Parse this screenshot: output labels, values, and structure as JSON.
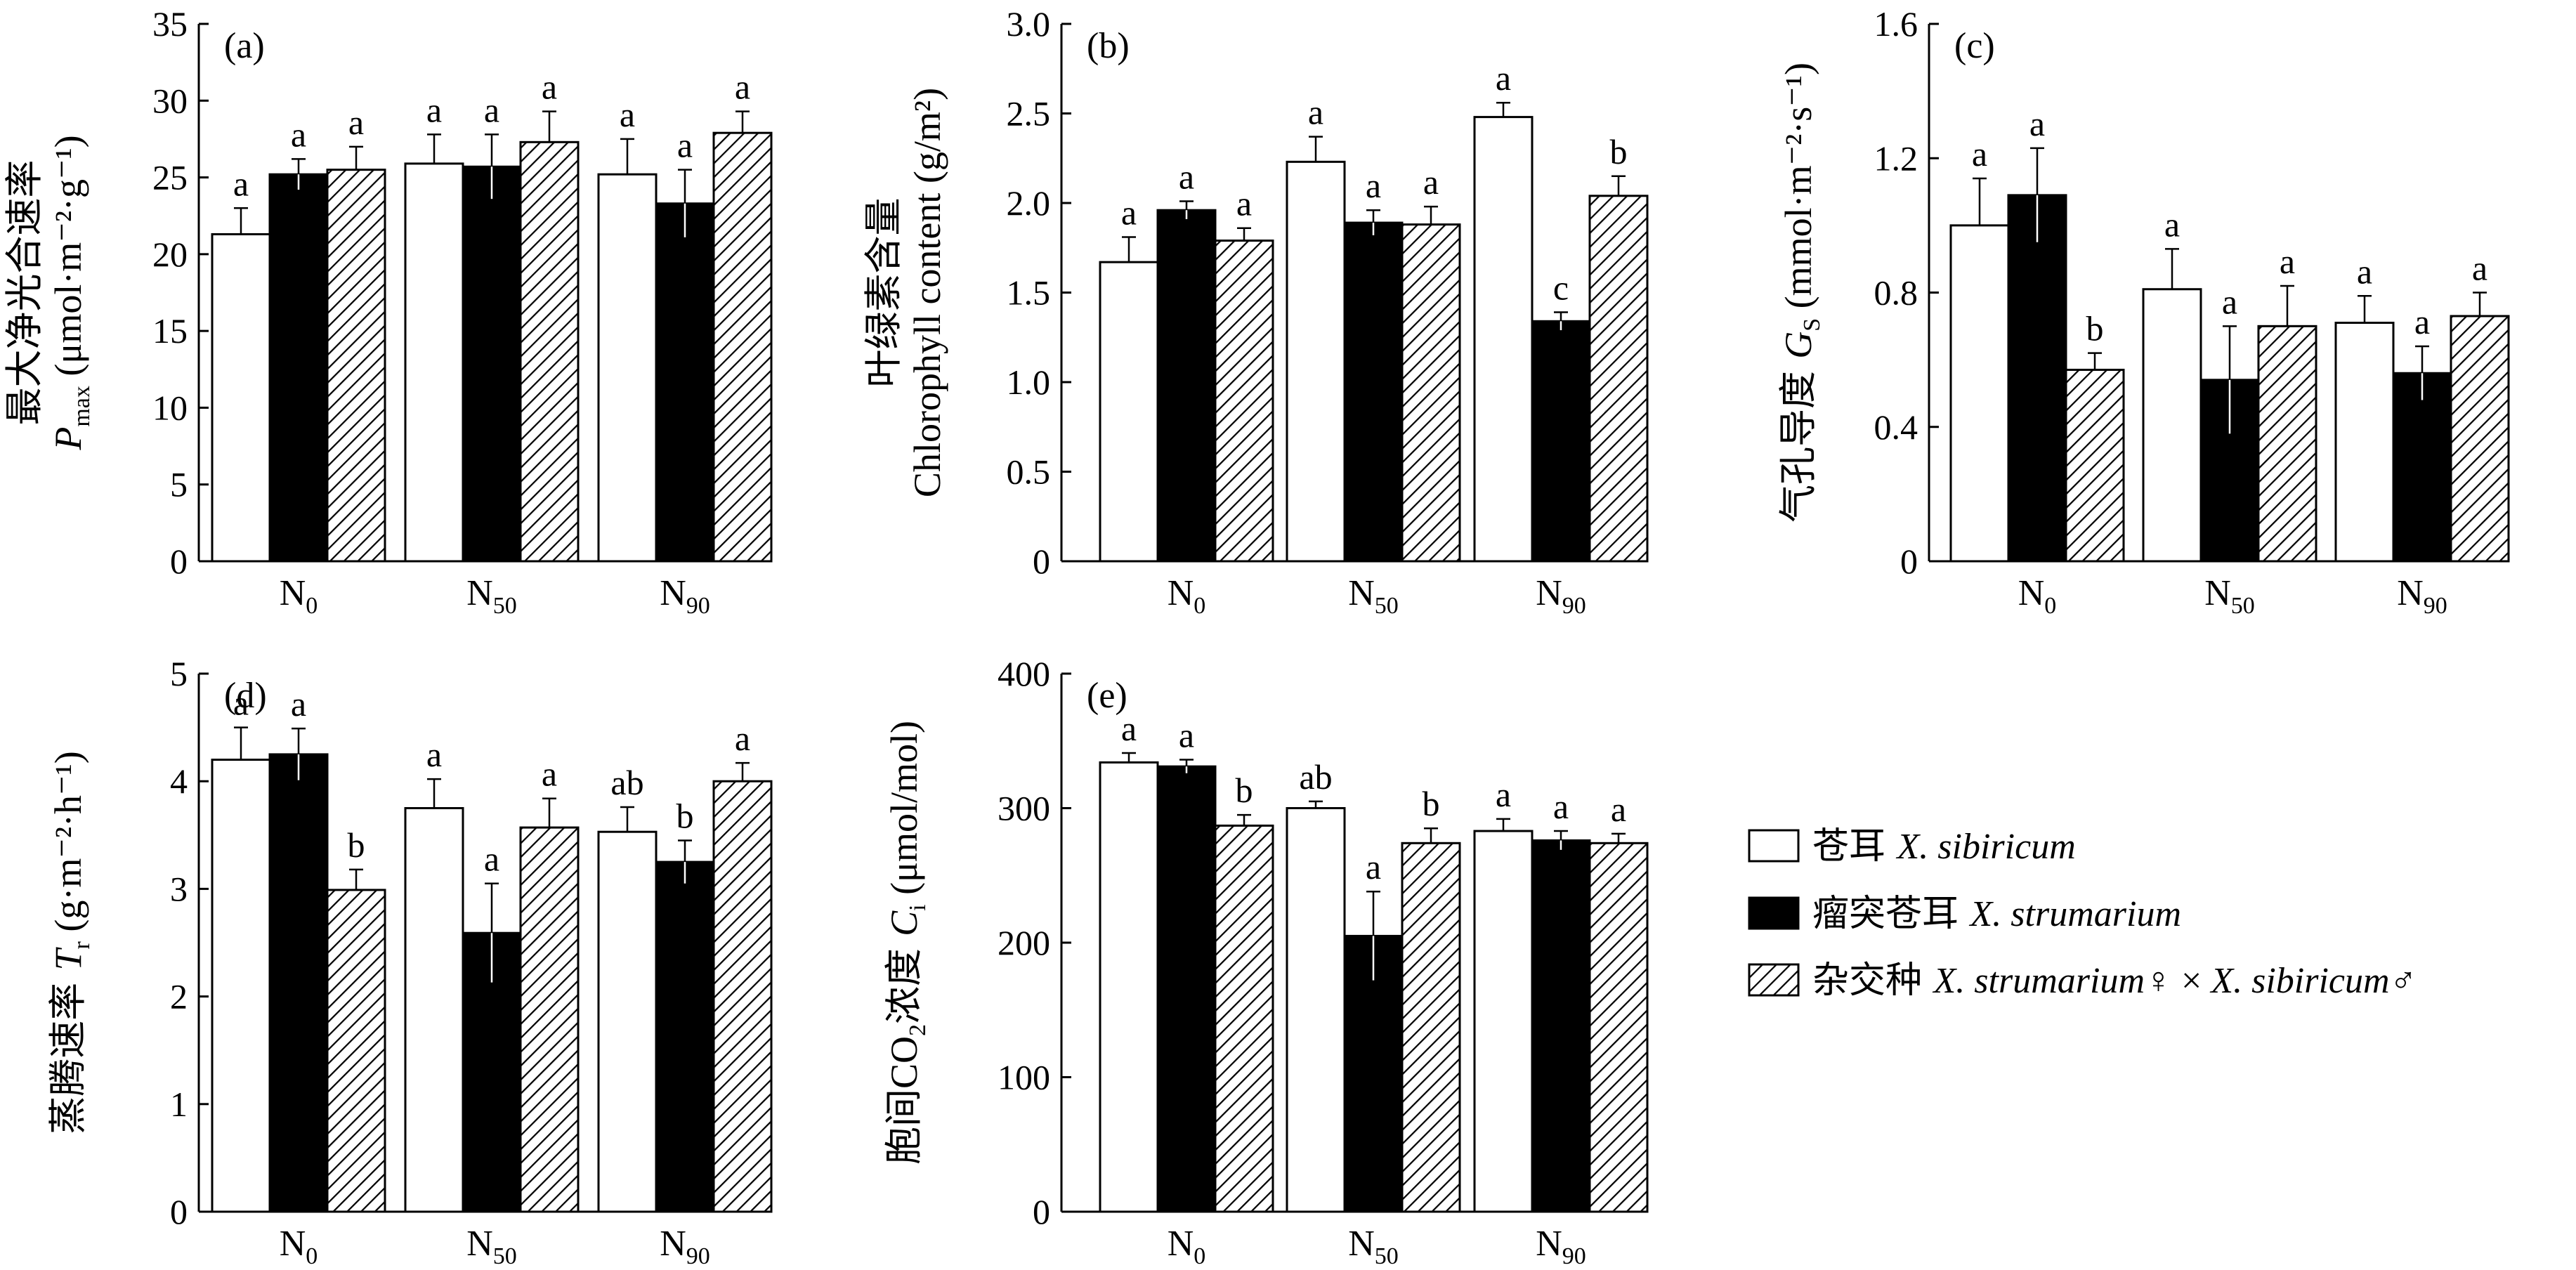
{
  "colors": {
    "white_bar": "#ffffff",
    "black_bar": "#000000",
    "hatch": "#000000",
    "axis": "#000000"
  },
  "legend": {
    "items": [
      {
        "swatch": "white",
        "cn": "苍耳",
        "sci": "X. sibiricum",
        "suffix": ""
      },
      {
        "swatch": "black",
        "cn": "瘤突苍耳",
        "sci": "X. strumarium",
        "suffix": ""
      },
      {
        "swatch": "hatch",
        "cn": "杂交种",
        "sci": "X. strumarium",
        "suffix": "♀ × ",
        "sci2": "X. sibiricum",
        "suffix2": "♂"
      }
    ]
  },
  "chart_data": [
    {
      "type": "bar",
      "panel": "(a)",
      "ylabel_cn": "最大净光合速率",
      "ylabel_sym": "P",
      "ylabel_sub": "max",
      "ylabel_unit": "(μmol·m⁻²·g⁻¹)",
      "ylim": [
        0,
        35
      ],
      "yticks": [
        0,
        5,
        10,
        15,
        20,
        25,
        30,
        35
      ],
      "categories": [
        {
          "base": "N",
          "sub": "0"
        },
        {
          "base": "N",
          "sub": "50"
        },
        {
          "base": "N",
          "sub": "90"
        }
      ],
      "series": [
        {
          "style": "white",
          "values": [
            21.3,
            25.9,
            25.2
          ],
          "errors": [
            1.7,
            1.9,
            2.3
          ],
          "letters": [
            "a",
            "a",
            "a"
          ]
        },
        {
          "style": "black",
          "values": [
            25.2,
            25.7,
            23.3
          ],
          "errors": [
            1.0,
            2.1,
            2.2
          ],
          "letters": [
            "a",
            "a",
            "a"
          ]
        },
        {
          "style": "hatch",
          "values": [
            25.5,
            27.3,
            27.9
          ],
          "errors": [
            1.5,
            2.0,
            1.4
          ],
          "letters": [
            "a",
            "a",
            "a"
          ]
        }
      ]
    },
    {
      "type": "bar",
      "panel": "(b)",
      "ylabel_cn": "叶绿素含量",
      "ylabel_en": "Chlorophyll content (g/m²)",
      "ylim": [
        0,
        3.0
      ],
      "yticks": [
        "0",
        "0.5",
        "1.0",
        "1.5",
        "2.0",
        "2.5",
        "3.0"
      ],
      "categories": [
        {
          "base": "N",
          "sub": "0"
        },
        {
          "base": "N",
          "sub": "50"
        },
        {
          "base": "N",
          "sub": "90"
        }
      ],
      "series": [
        {
          "style": "white",
          "values": [
            1.67,
            2.23,
            2.48
          ],
          "errors": [
            0.14,
            0.14,
            0.08
          ],
          "letters": [
            "a",
            "a",
            "a"
          ]
        },
        {
          "style": "black",
          "values": [
            1.96,
            1.89,
            1.34
          ],
          "errors": [
            0.05,
            0.07,
            0.05
          ],
          "letters": [
            "a",
            "a",
            "c"
          ]
        },
        {
          "style": "hatch",
          "values": [
            1.79,
            1.88,
            2.04
          ],
          "errors": [
            0.07,
            0.1,
            0.11
          ],
          "letters": [
            "a",
            "a",
            "b"
          ]
        }
      ]
    },
    {
      "type": "bar",
      "panel": "(c)",
      "ylabel_cn": "气孔导度",
      "ylabel_sym": "G",
      "ylabel_sub": "S",
      "ylabel_unit": "(mmol·m⁻²·s⁻¹)",
      "ylim": [
        0,
        1.6
      ],
      "yticks": [
        "0",
        "0.4",
        "0.8",
        "1.2",
        "1.6"
      ],
      "categories": [
        {
          "base": "N",
          "sub": "0"
        },
        {
          "base": "N",
          "sub": "50"
        },
        {
          "base": "N",
          "sub": "90"
        }
      ],
      "series": [
        {
          "style": "white",
          "values": [
            1.0,
            0.81,
            0.71
          ],
          "errors": [
            0.14,
            0.12,
            0.08
          ],
          "letters": [
            "a",
            "a",
            "a"
          ]
        },
        {
          "style": "black",
          "values": [
            1.09,
            0.54,
            0.56
          ],
          "errors": [
            0.14,
            0.16,
            0.08
          ],
          "letters": [
            "a",
            "a",
            "a"
          ]
        },
        {
          "style": "hatch",
          "values": [
            0.57,
            0.7,
            0.73
          ],
          "errors": [
            0.05,
            0.12,
            0.07
          ],
          "letters": [
            "b",
            "a",
            "a"
          ]
        }
      ]
    },
    {
      "type": "bar",
      "panel": "(d)",
      "ylabel_cn": "蒸腾速率",
      "ylabel_sym": "T",
      "ylabel_sub": "r",
      "ylabel_unit": "(g·m⁻²·h⁻¹)",
      "ylim": [
        0,
        5
      ],
      "yticks": [
        0,
        1,
        2,
        3,
        4,
        5
      ],
      "categories": [
        {
          "base": "N",
          "sub": "0"
        },
        {
          "base": "N",
          "sub": "50"
        },
        {
          "base": "N",
          "sub": "90"
        }
      ],
      "series": [
        {
          "style": "white",
          "values": [
            4.2,
            3.75,
            3.53
          ],
          "errors": [
            0.3,
            0.27,
            0.23
          ],
          "letters": [
            "a",
            "a",
            "ab"
          ]
        },
        {
          "style": "black",
          "values": [
            4.25,
            2.59,
            3.25
          ],
          "errors": [
            0.24,
            0.46,
            0.2
          ],
          "letters": [
            "a",
            "a",
            "b"
          ]
        },
        {
          "style": "hatch",
          "values": [
            2.99,
            3.57,
            4.0
          ],
          "errors": [
            0.19,
            0.27,
            0.17
          ],
          "letters": [
            "b",
            "a",
            "a"
          ]
        }
      ]
    },
    {
      "type": "bar",
      "panel": "(e)",
      "ylabel_cn": "胞间",
      "ylabel_chem": "CO",
      "ylabel_chem_sub": "2",
      "ylabel_cn2": "浓度",
      "ylabel_sym": "C",
      "ylabel_sub": "i",
      "ylabel_unit": "(μmol/mol)",
      "ylim": [
        0,
        400
      ],
      "yticks": [
        0,
        100,
        200,
        300,
        400
      ],
      "categories": [
        {
          "base": "N",
          "sub": "0"
        },
        {
          "base": "N",
          "sub": "50"
        },
        {
          "base": "N",
          "sub": "90"
        }
      ],
      "series": [
        {
          "style": "white",
          "values": [
            334,
            300,
            283
          ],
          "errors": [
            7,
            5,
            9
          ],
          "letters": [
            "a",
            "ab",
            "a"
          ]
        },
        {
          "style": "black",
          "values": [
            331,
            205,
            276
          ],
          "errors": [
            5,
            33,
            7
          ],
          "letters": [
            "a",
            "a",
            "a"
          ]
        },
        {
          "style": "hatch",
          "values": [
            287,
            274,
            274
          ],
          "errors": [
            8,
            11,
            7
          ],
          "letters": [
            "b",
            "b",
            "a"
          ]
        }
      ]
    }
  ]
}
